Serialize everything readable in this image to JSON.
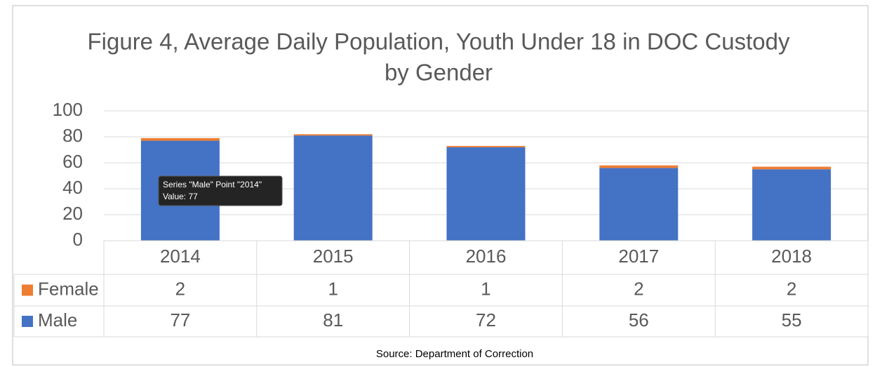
{
  "chart_data": {
    "type": "bar",
    "stacked": true,
    "title": [
      "Figure 4, Average Daily Population, Youth Under 18 in DOC Custody",
      "by Gender"
    ],
    "categories": [
      "2014",
      "2015",
      "2016",
      "2017",
      "2018"
    ],
    "series": [
      {
        "name": "Female",
        "color": "#ed7d31",
        "values": [
          2,
          1,
          1,
          2,
          2
        ]
      },
      {
        "name": "Male",
        "color": "#4472c4",
        "values": [
          77,
          81,
          72,
          56,
          55
        ]
      }
    ],
    "ylim": [
      0,
      100
    ],
    "yticks": [
      0,
      20,
      40,
      60,
      80,
      100
    ],
    "grid": true,
    "data_table": true,
    "tooltip": [
      "Series \"Male\" Point \"2014\"",
      "Value: 77"
    ],
    "source": "Source: Department of Correction"
  }
}
